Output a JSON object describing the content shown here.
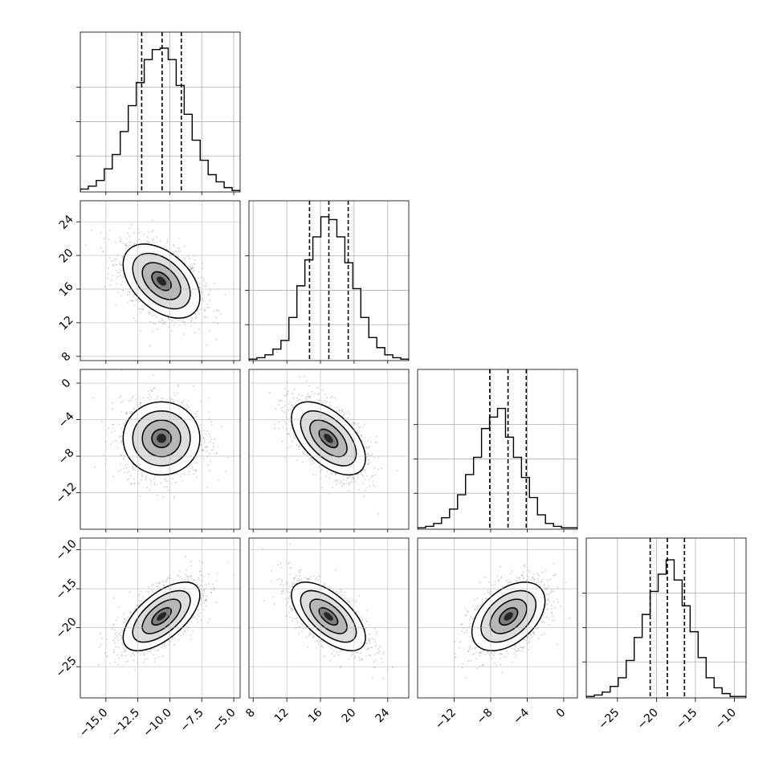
{
  "chart_data": {
    "type": "corner",
    "title": "",
    "parameters": [
      {
        "label": "",
        "range": [
          -17.0,
          -4.5
        ],
        "ticks": [
          -15.0,
          -12.5,
          -10.0,
          -7.5,
          -5.0
        ],
        "tick_labels": [
          "−15.0",
          "−12.5",
          "−10.0",
          "−7.5",
          "−5.0"
        ],
        "quantiles": [
          -12.2,
          -10.6,
          -9.1
        ],
        "mean": -10.65,
        "sd": 1.5
      },
      {
        "label": "",
        "range": [
          7.5,
          26.5
        ],
        "ticks": [
          8,
          12,
          16,
          20,
          24
        ],
        "tick_labels": [
          "8",
          "12",
          "16",
          "20",
          "24"
        ],
        "quantiles": [
          14.7,
          17.0,
          19.3
        ],
        "mean": 16.95,
        "sd": 2.2
      },
      {
        "label": "",
        "range": [
          -16.0,
          1.5
        ],
        "ticks": [
          -12,
          -8,
          -4,
          0
        ],
        "tick_labels": [
          "−12",
          "−8",
          "−4",
          "0"
        ],
        "quantiles": [
          -8.1,
          -6.1,
          -4.1
        ],
        "mean": -6.05,
        "sd": 2.0
      },
      {
        "label": "",
        "range": [
          -29.0,
          -8.5
        ],
        "ticks": [
          -25,
          -20,
          -15,
          -10
        ],
        "tick_labels": [
          "−25",
          "−20",
          "−15",
          "−10"
        ],
        "quantiles": [
          -20.8,
          -18.6,
          -16.4
        ],
        "mean": -18.55,
        "sd": 2.2
      }
    ],
    "histograms": [
      [
        0.02,
        0.04,
        0.08,
        0.16,
        0.26,
        0.42,
        0.6,
        0.76,
        0.92,
        0.99,
        1.0,
        0.92,
        0.74,
        0.54,
        0.36,
        0.22,
        0.12,
        0.07,
        0.03,
        0.01
      ],
      [
        0.01,
        0.02,
        0.04,
        0.08,
        0.14,
        0.3,
        0.52,
        0.7,
        0.86,
        1.0,
        0.98,
        0.86,
        0.68,
        0.5,
        0.3,
        0.16,
        0.09,
        0.04,
        0.02,
        0.01
      ],
      [
        0.01,
        0.02,
        0.04,
        0.08,
        0.14,
        0.24,
        0.38,
        0.5,
        0.7,
        0.78,
        0.84,
        0.64,
        0.5,
        0.36,
        0.22,
        0.1,
        0.04,
        0.02,
        0.01,
        0.01
      ],
      [
        0.01,
        0.02,
        0.04,
        0.08,
        0.14,
        0.26,
        0.42,
        0.58,
        0.74,
        0.86,
        0.96,
        0.82,
        0.64,
        0.46,
        0.28,
        0.14,
        0.07,
        0.03,
        0.01,
        0.01
      ]
    ],
    "correlations": [
      {
        "pair": [
          0,
          1
        ],
        "rho": -0.45
      },
      {
        "pair": [
          0,
          2
        ],
        "rho": 0.0
      },
      {
        "pair": [
          1,
          2
        ],
        "rho": -0.55
      },
      {
        "pair": [
          0,
          3
        ],
        "rho": 0.62
      },
      {
        "pair": [
          1,
          3
        ],
        "rho": -0.62
      },
      {
        "pair": [
          2,
          3
        ],
        "rho": 0.45
      }
    ],
    "contour_levels_sigma": [
      0.5,
      1.0,
      1.5,
      2.0
    ],
    "grid": true,
    "quantile_lines": "dashed"
  }
}
